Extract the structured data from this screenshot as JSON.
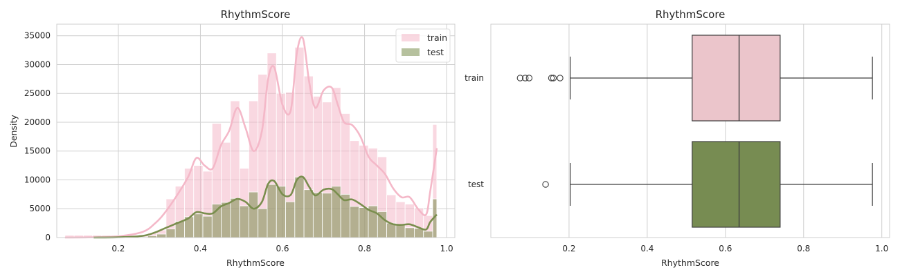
{
  "chart_data": [
    {
      "type": "histogram",
      "title": "RhythmScore",
      "xlabel": "RhythmScore",
      "ylabel": "Density",
      "xlim": [
        0.05,
        1.02
      ],
      "ylim": [
        0,
        37000
      ],
      "xticks": [
        0.2,
        0.4,
        0.6,
        0.8,
        1.0
      ],
      "xtick_labels": [
        "0.2",
        "0.4",
        "0.6",
        "0.8",
        "1.0"
      ],
      "yticks": [
        0,
        5000,
        10000,
        15000,
        20000,
        25000,
        30000,
        35000
      ],
      "ytick_labels": [
        "0",
        "5000",
        "10000",
        "15000",
        "20000",
        "25000",
        "30000",
        "35000"
      ],
      "grid": true,
      "legend_position": "top-right",
      "bin_edges": [
        0.07,
        0.0924,
        0.1148,
        0.1372,
        0.1596,
        0.182,
        0.2044,
        0.2268,
        0.2492,
        0.2716,
        0.294,
        0.3164,
        0.3388,
        0.3612,
        0.3836,
        0.406,
        0.4284,
        0.4508,
        0.4732,
        0.4956,
        0.518,
        0.5404,
        0.5628,
        0.5852,
        0.6076,
        0.63,
        0.6524,
        0.6748,
        0.6972,
        0.7196,
        0.742,
        0.7644,
        0.7868,
        0.8092,
        0.8316,
        0.854,
        0.8764,
        0.8988,
        0.9212,
        0.9436,
        0.966,
        0.976
      ],
      "series": [
        {
          "name": "train",
          "color": "#f4b8c8",
          "counts": [
            400,
            400,
            400,
            400,
            400,
            400,
            400,
            400,
            500,
            800,
            1300,
            6700,
            8900,
            12000,
            12500,
            11500,
            19800,
            16500,
            23700,
            12000,
            23700,
            28300,
            32000,
            25000,
            25200,
            33000,
            28000,
            24500,
            23500,
            26000,
            21500,
            16800,
            16000,
            15500,
            14000,
            7400,
            6200,
            5800,
            5100,
            3800,
            19600
          ],
          "kde_x": [
            0.07,
            0.14,
            0.2,
            0.26,
            0.29,
            0.31,
            0.34,
            0.37,
            0.39,
            0.41,
            0.43,
            0.45,
            0.47,
            0.49,
            0.51,
            0.53,
            0.55,
            0.565,
            0.58,
            0.6,
            0.62,
            0.635,
            0.65,
            0.665,
            0.68,
            0.7,
            0.72,
            0.735,
            0.75,
            0.77,
            0.79,
            0.81,
            0.83,
            0.85,
            0.87,
            0.89,
            0.91,
            0.93,
            0.95,
            0.96,
            0.976
          ],
          "kde_y": [
            0,
            50,
            200,
            1000,
            2500,
            4000,
            7000,
            10500,
            13800,
            12500,
            12000,
            16000,
            18500,
            22500,
            19000,
            15000,
            18500,
            27500,
            29500,
            23000,
            22000,
            32000,
            34500,
            27000,
            22500,
            25500,
            26000,
            23000,
            20000,
            19500,
            17500,
            14000,
            12500,
            11000,
            8500,
            7000,
            7000,
            5000,
            4000,
            8000,
            15500
          ]
        },
        {
          "name": "test",
          "color": "#7a8e4e",
          "counts": [
            0,
            0,
            0,
            0,
            0,
            0,
            0,
            0,
            100,
            300,
            600,
            1500,
            2800,
            3600,
            4100,
            3700,
            5800,
            6100,
            6800,
            5500,
            7900,
            5000,
            9200,
            8900,
            6200,
            10500,
            8300,
            7800,
            7700,
            8900,
            7500,
            5400,
            5200,
            5500,
            4500,
            2500,
            2200,
            1700,
            1600,
            1100,
            6700
          ],
          "kde_x": [
            0.14,
            0.2,
            0.26,
            0.29,
            0.31,
            0.34,
            0.37,
            0.39,
            0.41,
            0.43,
            0.45,
            0.47,
            0.49,
            0.51,
            0.53,
            0.55,
            0.565,
            0.58,
            0.6,
            0.62,
            0.635,
            0.65,
            0.665,
            0.68,
            0.7,
            0.72,
            0.735,
            0.75,
            0.77,
            0.79,
            0.81,
            0.83,
            0.85,
            0.87,
            0.89,
            0.91,
            0.93,
            0.95,
            0.96,
            0.976
          ],
          "kde_y": [
            0,
            50,
            300,
            900,
            1500,
            2400,
            3300,
            4400,
            4200,
            4200,
            5400,
            6000,
            6700,
            6200,
            5000,
            6200,
            9300,
            9800,
            7500,
            7400,
            10000,
            10500,
            8800,
            7300,
            8300,
            8400,
            7500,
            6500,
            6600,
            5800,
            4800,
            4200,
            3000,
            2300,
            2200,
            2300,
            1800,
            1400,
            2700,
            4000
          ]
        }
      ]
    },
    {
      "type": "box",
      "title": "RhythmScore",
      "xlabel": "RhythmScore",
      "xlim": [
        0.0,
        1.02
      ],
      "xticks": [
        0.2,
        0.4,
        0.6,
        0.8,
        1.0
      ],
      "xtick_labels": [
        "0.2",
        "0.4",
        "0.6",
        "0.8",
        "1.0"
      ],
      "grid": true,
      "categories": [
        "train",
        "test"
      ],
      "series": [
        {
          "name": "train",
          "color": "#ebc5cb",
          "whisker_low": 0.203,
          "q1": 0.515,
          "median": 0.635,
          "q3": 0.74,
          "whisker_high": 0.976,
          "outliers": [
            0.075,
            0.088,
            0.098,
            0.155,
            0.16,
            0.177
          ]
        },
        {
          "name": "test",
          "color": "#778c52",
          "whisker_low": 0.203,
          "q1": 0.515,
          "median": 0.635,
          "q3": 0.74,
          "whisker_high": 0.976,
          "outliers": [
            0.14
          ]
        }
      ]
    }
  ]
}
